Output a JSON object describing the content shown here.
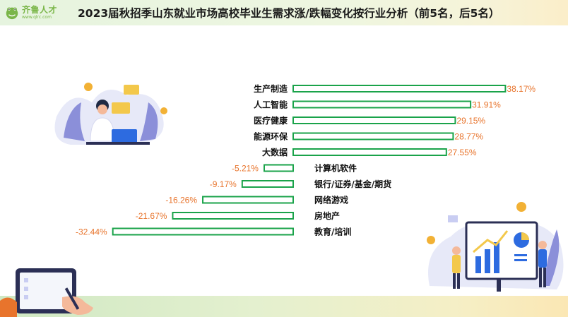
{
  "title": "2023届秋招季山东就业市场高校毕业生需求涨/跌幅变化按行业分析（前5名，后5名）",
  "logo": {
    "name": "齐鲁人才",
    "url": "www.qlrc.com"
  },
  "colors": {
    "bar_stroke": "#1aa34a",
    "value_label": "#e8742c",
    "accent": "#7ab648"
  },
  "chart_data": {
    "type": "bar",
    "orientation": "horizontal",
    "unit": "%",
    "categories": [
      "生产制造",
      "人工智能",
      "医疗健康",
      "能源环保",
      "大数据",
      "计算机软件",
      "银行/证券/基金/期货",
      "网络游戏",
      "房地产",
      "教育/培训"
    ],
    "values": [
      38.17,
      31.91,
      29.15,
      28.77,
      27.55,
      -5.21,
      -9.17,
      -16.26,
      -21.67,
      -32.44
    ],
    "labels": [
      "38.17%",
      "31.91%",
      "29.15%",
      "28.77%",
      "27.55%",
      "-5.21%",
      "-9.17%",
      "-16.26%",
      "-21.67%",
      "-32.44%"
    ],
    "grid": false,
    "legend": "none"
  }
}
